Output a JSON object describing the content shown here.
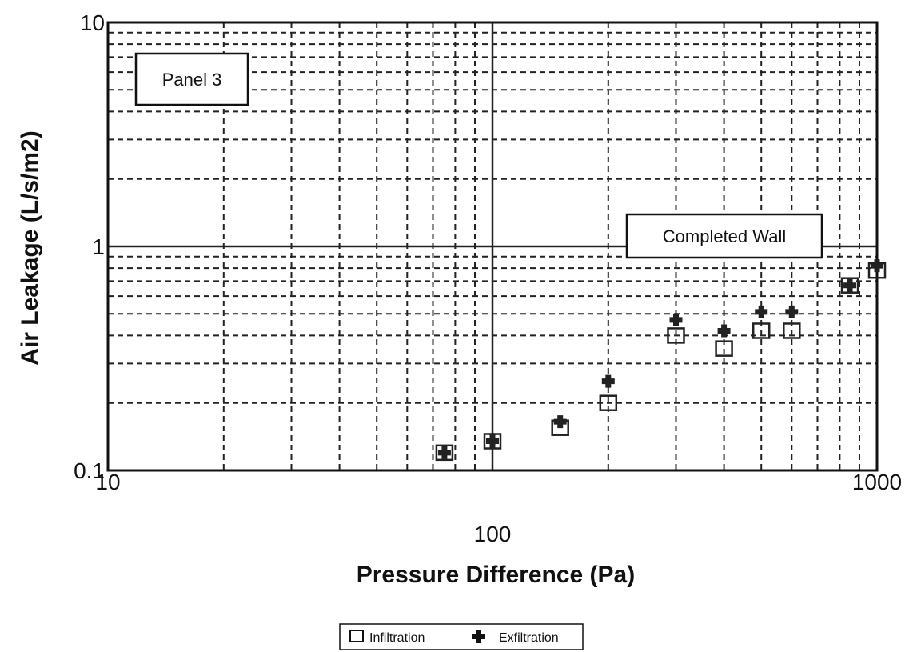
{
  "chart_data": {
    "type": "scatter",
    "xscale": "log",
    "yscale": "log",
    "xlim": [
      10,
      1000
    ],
    "ylim": [
      0.1,
      10
    ],
    "x_ticks": [
      {
        "value": 10,
        "label": "10"
      },
      {
        "value": 100,
        "label": "100"
      },
      {
        "value": 1000,
        "label": "1000"
      }
    ],
    "y_ticks": [
      {
        "value": 0.1,
        "label": "0.1"
      },
      {
        "value": 1,
        "label": "1"
      },
      {
        "value": 10,
        "label": "10"
      }
    ],
    "xlabel": "Pressure Difference (Pa)",
    "ylabel": "Air Leakage (L/s/m2)",
    "grid": true,
    "legend_position": "bottom-center",
    "annotations": [
      "Panel 3",
      "Completed Wall"
    ],
    "series": [
      {
        "name": "Infiltration",
        "marker": "open-square",
        "x": [
          75,
          100,
          150,
          200,
          300,
          400,
          500,
          600,
          850,
          1000
        ],
        "y": [
          0.12,
          0.135,
          0.155,
          0.2,
          0.4,
          0.35,
          0.42,
          0.42,
          0.67,
          0.78
        ]
      },
      {
        "name": "Exfiltration",
        "marker": "filled-plus",
        "x": [
          75,
          100,
          150,
          200,
          300,
          400,
          500,
          600,
          850,
          1000
        ],
        "y": [
          0.12,
          0.135,
          0.165,
          0.25,
          0.47,
          0.42,
          0.51,
          0.51,
          0.67,
          0.82
        ]
      }
    ]
  },
  "colors": {
    "grid": "#222222",
    "axis": "#111111",
    "marker": "#222222"
  }
}
